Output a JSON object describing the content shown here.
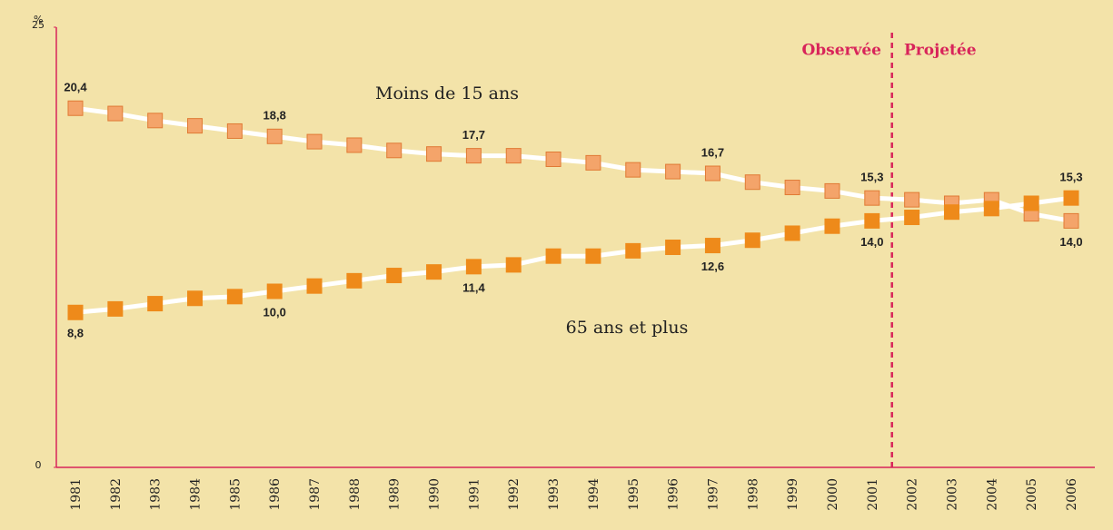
{
  "chart_data": {
    "type": "line",
    "y_label": "%",
    "categories": [
      "1981",
      "1982",
      "1983",
      "1984",
      "1985",
      "1986",
      "1987",
      "1988",
      "1989",
      "1990",
      "1991",
      "1992",
      "1993",
      "1994",
      "1995",
      "1996",
      "1997",
      "1998",
      "1999",
      "2000",
      "2001",
      "2002",
      "2003",
      "2004",
      "2005",
      "2006"
    ],
    "series": [
      {
        "name": "Moins de 15 ans",
        "color": "#f4a46a",
        "values": [
          20.4,
          20.1,
          19.7,
          19.4,
          19.1,
          18.8,
          18.5,
          18.3,
          18.0,
          17.8,
          17.7,
          17.7,
          17.5,
          17.3,
          16.9,
          16.8,
          16.7,
          16.2,
          15.9,
          15.7,
          15.3,
          15.2,
          15.0,
          15.2,
          14.4,
          14.0
        ],
        "value_labels": [
          "20,4",
          null,
          null,
          null,
          null,
          "18,8",
          null,
          null,
          null,
          null,
          "17,7",
          null,
          null,
          null,
          null,
          null,
          "16,7",
          null,
          null,
          null,
          "15,3",
          null,
          null,
          null,
          null,
          "14,0"
        ]
      },
      {
        "name": "65 ans et plus",
        "color": "#ee8a1a",
        "values": [
          8.8,
          9.0,
          9.3,
          9.6,
          9.7,
          10.0,
          10.3,
          10.6,
          10.9,
          11.1,
          11.4,
          11.5,
          12.0,
          12.0,
          12.3,
          12.5,
          12.6,
          12.9,
          13.3,
          13.7,
          14.0,
          14.2,
          14.5,
          14.7,
          15.0,
          15.3
        ],
        "value_labels": [
          "8,8",
          null,
          null,
          null,
          null,
          "10,0",
          null,
          null,
          null,
          null,
          "11,4",
          null,
          null,
          null,
          null,
          null,
          "12,6",
          null,
          null,
          null,
          "14,0",
          null,
          null,
          null,
          null,
          "15,3"
        ]
      }
    ],
    "phases": [
      "Observée",
      "Projetée"
    ],
    "ylim": [
      0,
      25
    ],
    "yticks": [
      0,
      25
    ]
  }
}
